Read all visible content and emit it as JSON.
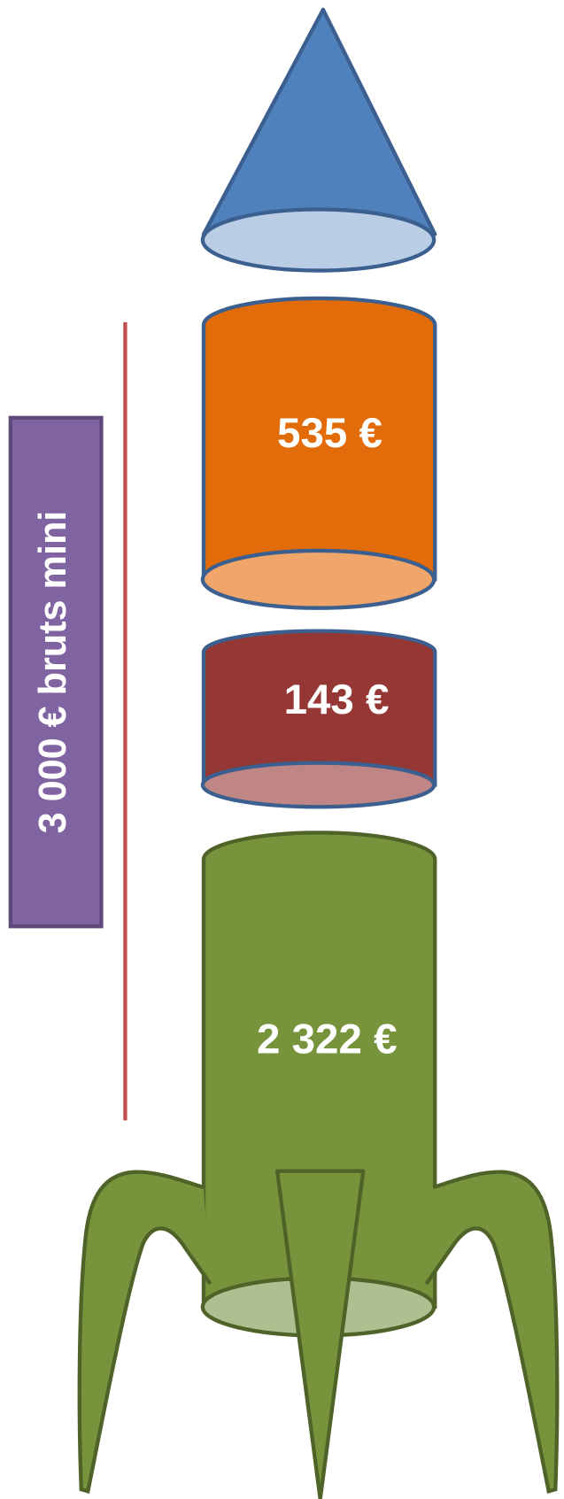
{
  "side_label": "3 000 € bruts mini",
  "stages": [
    {
      "label": "535 €"
    },
    {
      "label": "143 €"
    },
    {
      "label": "2 322 €"
    }
  ]
}
